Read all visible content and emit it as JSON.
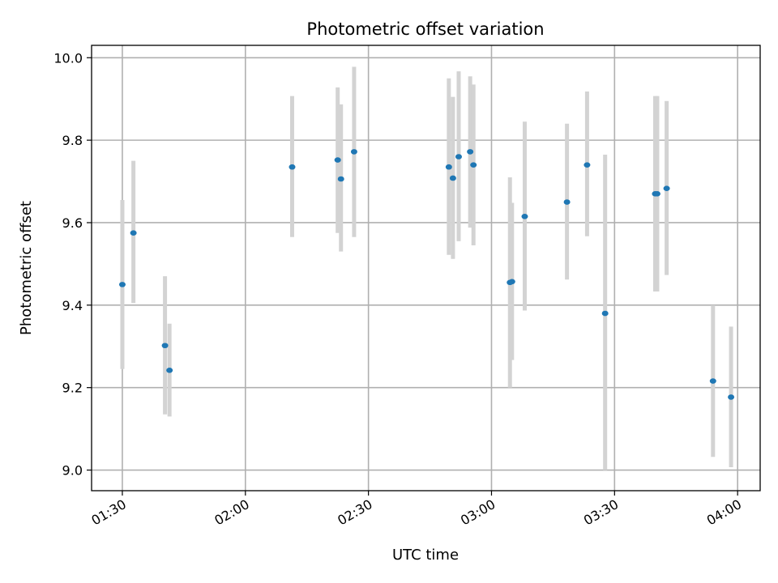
{
  "chart_data": {
    "type": "scatter",
    "title": "Photometric offset variation",
    "xlabel": "UTC time",
    "ylabel": "Photometric offset",
    "x_type": "time",
    "xlim": [
      "01:22:30",
      "04:05:30"
    ],
    "ylim": [
      8.95,
      10.03
    ],
    "xticks": [
      "01:30",
      "02:00",
      "02:30",
      "03:00",
      "03:30",
      "04:00"
    ],
    "yticks": [
      "9.0",
      "9.2",
      "9.4",
      "9.6",
      "9.8",
      "10.0"
    ],
    "grid": true,
    "colors": {
      "point": "#1f77b4",
      "errorbar": "#d3d3d3",
      "grid": "#b0b0b0"
    },
    "points": [
      {
        "x": "01:30:00",
        "y": 9.45,
        "ylo": 9.245,
        "yhi": 9.655
      },
      {
        "x": "01:32:42",
        "y": 9.575,
        "ylo": 9.405,
        "yhi": 9.75
      },
      {
        "x": "01:40:24",
        "y": 9.302,
        "ylo": 9.135,
        "yhi": 9.47
      },
      {
        "x": "01:41:30",
        "y": 9.242,
        "ylo": 9.13,
        "yhi": 9.355
      },
      {
        "x": "02:11:24",
        "y": 9.735,
        "ylo": 9.565,
        "yhi": 9.907
      },
      {
        "x": "02:22:30",
        "y": 9.752,
        "ylo": 9.575,
        "yhi": 9.928
      },
      {
        "x": "02:23:18",
        "y": 9.706,
        "ylo": 9.53,
        "yhi": 9.887
      },
      {
        "x": "02:26:30",
        "y": 9.772,
        "ylo": 9.565,
        "yhi": 9.978
      },
      {
        "x": "02:49:36",
        "y": 9.735,
        "ylo": 9.522,
        "yhi": 9.95
      },
      {
        "x": "02:50:36",
        "y": 9.708,
        "ylo": 9.512,
        "yhi": 9.905
      },
      {
        "x": "02:52:00",
        "y": 9.76,
        "ylo": 9.555,
        "yhi": 9.967
      },
      {
        "x": "02:54:48",
        "y": 9.772,
        "ylo": 9.588,
        "yhi": 9.955
      },
      {
        "x": "02:55:36",
        "y": 9.74,
        "ylo": 9.545,
        "yhi": 9.935
      },
      {
        "x": "03:04:30",
        "y": 9.455,
        "ylo": 9.2,
        "yhi": 9.71
      },
      {
        "x": "03:05:00",
        "y": 9.457,
        "ylo": 9.267,
        "yhi": 9.648
      },
      {
        "x": "03:08:06",
        "y": 9.615,
        "ylo": 9.387,
        "yhi": 9.845
      },
      {
        "x": "03:18:24",
        "y": 9.65,
        "ylo": 9.462,
        "yhi": 9.84
      },
      {
        "x": "03:23:18",
        "y": 9.74,
        "ylo": 9.567,
        "yhi": 9.918
      },
      {
        "x": "03:27:42",
        "y": 9.38,
        "ylo": 9.0,
        "yhi": 9.765
      },
      {
        "x": "03:39:54",
        "y": 9.67,
        "ylo": 9.433,
        "yhi": 9.907
      },
      {
        "x": "03:40:24",
        "y": 9.67,
        "ylo": 9.433,
        "yhi": 9.907
      },
      {
        "x": "03:42:42",
        "y": 9.683,
        "ylo": 9.473,
        "yhi": 9.895
      },
      {
        "x": "03:54:00",
        "y": 9.216,
        "ylo": 9.032,
        "yhi": 9.4
      },
      {
        "x": "03:58:24",
        "y": 9.177,
        "ylo": 9.007,
        "yhi": 9.348
      }
    ]
  }
}
